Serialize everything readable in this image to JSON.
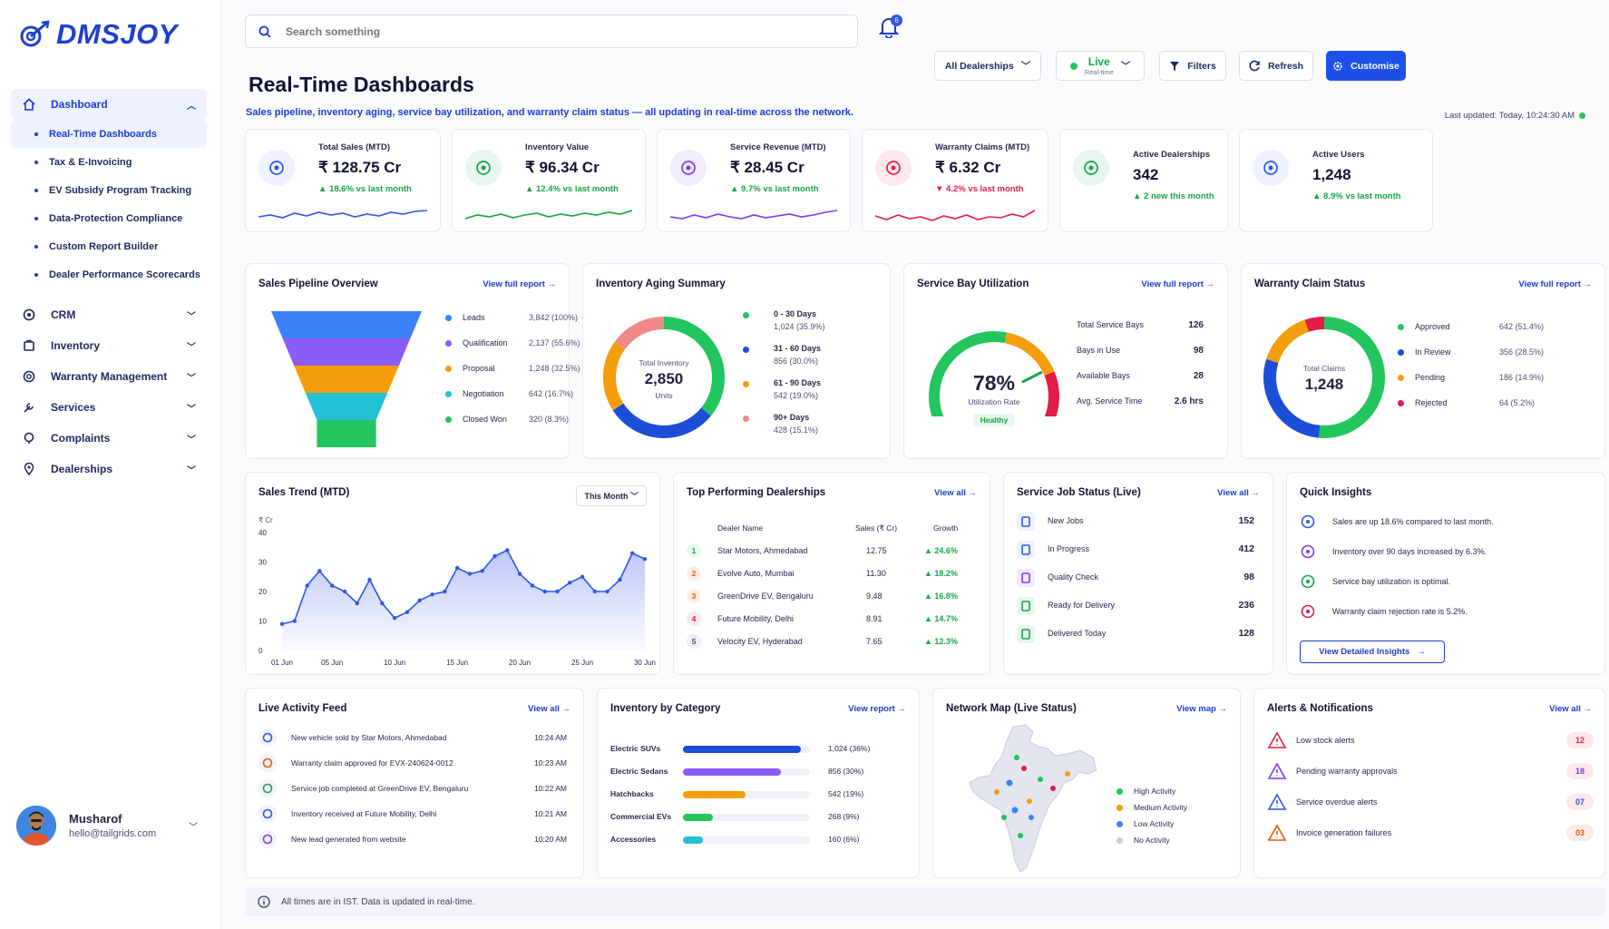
{
  "brand": {
    "name": "DMSJOY"
  },
  "sidebar": {
    "items": [
      {
        "label": "Dashboard",
        "icon": "home-icon",
        "expanded": true,
        "children": [
          "Real-Time Dashboards",
          "Tax & E-Invoicing",
          "EV Subsidy Program Tracking",
          "Data-Protection Compliance",
          "Custom Report Builder",
          "Dealer Performance Scorecards"
        ]
      },
      {
        "label": "CRM",
        "icon": "crm-icon"
      },
      {
        "label": "Inventory",
        "icon": "inventory-icon"
      },
      {
        "label": "Warranty Management",
        "icon": "warranty-icon"
      },
      {
        "label": "Services",
        "icon": "services-icon"
      },
      {
        "label": "Complaints",
        "icon": "complaints-icon"
      },
      {
        "label": "Dealerships",
        "icon": "dealerships-icon"
      }
    ],
    "user": {
      "name": "Musharof",
      "email": "hello@tailgrids.com"
    }
  },
  "header": {
    "search_placeholder": "Search something",
    "notifications_count": "6",
    "title": "Real-Time Dashboards",
    "subtitle": "Sales pipeline, inventory aging, service bay utilization, and warranty claim status — all updating in real-time across the network.",
    "last_updated": "Last updated: Today, 10:24:30 AM",
    "controls": {
      "dealership": "All Dealerships",
      "live": "Live",
      "live_sub": "Real-time",
      "filters": "Filters",
      "refresh": "Refresh",
      "customise": "Customise"
    }
  },
  "kpis": [
    {
      "label": "Total Sales (MTD)",
      "value": "₹ 128.75 Cr",
      "delta": "18.6% vs last month",
      "direction": "up",
      "color": "#2f55e8",
      "bg": "#eef2ff",
      "icon": "rupee-icon"
    },
    {
      "label": "Inventory Value",
      "value": "₹ 96.34 Cr",
      "delta": "12.4% vs last month",
      "direction": "up",
      "color": "#16a34a",
      "bg": "#e8f7ee",
      "icon": "box-icon"
    },
    {
      "label": "Service Revenue (MTD)",
      "value": "₹ 28.45 Cr",
      "delta": "9.7% vs last month",
      "direction": "up",
      "color": "#7c3aed",
      "bg": "#f1ebfe",
      "icon": "wrench-icon"
    },
    {
      "label": "Warranty Claims (MTD)",
      "value": "₹ 6.32 Cr",
      "delta": "4.2% vs last month",
      "direction": "down",
      "color": "#e11d48",
      "bg": "#fde8ea",
      "icon": "shield-icon"
    },
    {
      "label": "Active Dealerships",
      "value": "342",
      "delta": "2 new this month",
      "direction": "up",
      "color": "#16a34a",
      "bg": "#e8f7ee",
      "icon": "store-icon"
    },
    {
      "label": "Active Users",
      "value": "1,248",
      "delta": "8.9% vs last month",
      "direction": "up",
      "color": "#2f55e8",
      "bg": "#eef2ff",
      "icon": "user-icon"
    }
  ],
  "pipeline": {
    "title": "Sales Pipeline Overview",
    "link": "View full report",
    "stages": [
      {
        "label": "Leads",
        "value": "3,842 (100%)",
        "color": "#3b82f6"
      },
      {
        "label": "Qualification",
        "value": "2,137 (55.6%)",
        "color": "#8b5cf6"
      },
      {
        "label": "Proposal",
        "value": "1,248 (32.5%)",
        "color": "#f59e0b"
      },
      {
        "label": "Negotiation",
        "value": "642 (16.7%)",
        "color": "#22c1d6"
      },
      {
        "label": "Closed Won",
        "value": "320 (8.3%)",
        "color": "#22c55e"
      }
    ]
  },
  "aging": {
    "title": "Inventory Aging Summary",
    "center_label": "Total Inventory",
    "center_value": "2,850",
    "center_unit": "Units",
    "buckets": [
      {
        "label": "0 - 30 Days",
        "value": "1,024 (35.9%)",
        "pct": 35.9,
        "color": "#22c55e"
      },
      {
        "label": "31 - 60 Days",
        "value": "856 (30.0%)",
        "pct": 30.0,
        "color": "#1d4ed8"
      },
      {
        "label": "61 - 90 Days",
        "value": "542 (19.0%)",
        "pct": 19.0,
        "color": "#f59e0b"
      },
      {
        "label": "90+ Days",
        "value": "428 (15.1%)",
        "pct": 15.1,
        "color": "#f08a8a"
      }
    ]
  },
  "bay": {
    "title": "Service Bay Utilization",
    "link": "View full report",
    "pct": 78,
    "pct_label": "78%",
    "caption": "Utilization Rate",
    "status": "Healthy",
    "stats": [
      {
        "label": "Total Service Bays",
        "value": "126"
      },
      {
        "label": "Bays in Use",
        "value": "98"
      },
      {
        "label": "Available Bays",
        "value": "28"
      },
      {
        "label": "Avg. Service Time",
        "value": "2.6 hrs"
      }
    ]
  },
  "warranty": {
    "title": "Warranty Claim Status",
    "link": "View full report",
    "center_label": "Total Claims",
    "center_value": "1,248",
    "statuses": [
      {
        "label": "Approved",
        "value": "642 (51.4%)",
        "pct": 51.4,
        "color": "#22c55e"
      },
      {
        "label": "In Review",
        "value": "356 (28.5%)",
        "pct": 28.5,
        "color": "#1d4ed8"
      },
      {
        "label": "Pending",
        "value": "186 (14.9%)",
        "pct": 14.9,
        "color": "#f59e0b"
      },
      {
        "label": "Rejected",
        "value": "64 (5.2%)",
        "pct": 5.2,
        "color": "#e11d48"
      }
    ]
  },
  "trend": {
    "title": "Sales Trend (MTD)",
    "period": "This Month",
    "unit": "₹ Cr",
    "chart_data": {
      "type": "area",
      "x": [
        1,
        2,
        3,
        4,
        5,
        6,
        7,
        8,
        9,
        10,
        11,
        12,
        13,
        14,
        15,
        16,
        17,
        18,
        19,
        20,
        21,
        22,
        23,
        24,
        25,
        26,
        27,
        28,
        29,
        30
      ],
      "y": [
        9,
        10,
        22,
        27,
        22,
        20,
        16,
        24,
        16,
        11,
        13,
        17,
        19,
        20,
        28,
        26,
        27,
        32,
        34,
        26,
        22,
        20,
        20,
        23,
        25,
        20,
        20,
        24,
        33,
        31
      ],
      "xticks": [
        "01 Jun",
        "05 Jun",
        "10 Jun",
        "15 Jun",
        "20 Jun",
        "25 Jun",
        "30 Jun"
      ],
      "xtick_pos": [
        1,
        5,
        10,
        15,
        20,
        25,
        30
      ],
      "yticks": [
        "0",
        "10",
        "20",
        "30",
        "40"
      ],
      "ylim": [
        0,
        40
      ]
    }
  },
  "top_dealers": {
    "title": "Top Performing Dealerships",
    "link": "View all",
    "columns": [
      "Dealer Name",
      "Sales (₹ Cr)",
      "Growth"
    ],
    "rows": [
      {
        "rank": "1",
        "name": "Star Motors, Ahmedabad",
        "sales": "12.75",
        "growth": "24.6%",
        "color": "#16a34a",
        "bg": "#e8f7ee"
      },
      {
        "rank": "2",
        "name": "Evolve Auto, Mumbai",
        "sales": "11.30",
        "growth": "18.2%",
        "color": "#ea580c",
        "bg": "#fdeee4"
      },
      {
        "rank": "3",
        "name": "GreenDrive EV, Bengaluru",
        "sales": "9.48",
        "growth": "16.8%",
        "color": "#ea580c",
        "bg": "#fdeee4"
      },
      {
        "rank": "4",
        "name": "Future Mobility, Delhi",
        "sales": "8.91",
        "growth": "14.7%",
        "color": "#e11d48",
        "bg": "#fde8ea"
      },
      {
        "rank": "5",
        "name": "Velocity EV, Hyderabad",
        "sales": "7.65",
        "growth": "12.3%",
        "color": "#4a5070",
        "bg": "#eef0f5"
      }
    ]
  },
  "jobs": {
    "title": "Service Job Status (Live)",
    "link": "View all",
    "rows": [
      {
        "label": "New Jobs",
        "value": "152",
        "icon": "clipboard-icon",
        "color": "#2f55e8",
        "bg": "#eef2ff"
      },
      {
        "label": "In Progress",
        "value": "412",
        "icon": "wrench-icon",
        "color": "#2f55e8",
        "bg": "#eef2ff"
      },
      {
        "label": "Quality Check",
        "value": "98",
        "icon": "check-circle-icon",
        "color": "#7c3aed",
        "bg": "#f1ebfe"
      },
      {
        "label": "Ready for Delivery",
        "value": "236",
        "icon": "car-icon",
        "color": "#16a34a",
        "bg": "#e8f7ee"
      },
      {
        "label": "Delivered Today",
        "value": "128",
        "icon": "delivered-icon",
        "color": "#16a34a",
        "bg": "#e8f7ee"
      }
    ]
  },
  "insights": {
    "title": "Quick Insights",
    "button": "View Detailed Insights",
    "rows": [
      {
        "text": "Sales are up 18.6% compared to last month.",
        "color": "#2f55e8",
        "icon": "trend-icon"
      },
      {
        "text": "Inventory over 90 days increased by 6.3%.",
        "color": "#7c3aed",
        "icon": "shield-icon"
      },
      {
        "text": "Service bay utilization is optimal.",
        "color": "#16a34a",
        "icon": "check-icon"
      },
      {
        "text": "Warranty claim rejection rate is 5.2%.",
        "color": "#e11d48",
        "icon": "shield-icon"
      }
    ]
  },
  "activity": {
    "title": "Live Activity Feed",
    "link": "View all",
    "rows": [
      {
        "text": "New vehicle sold by Star Motors, Ahmedabad",
        "time": "10:24 AM",
        "color": "#2f55e8"
      },
      {
        "text": "Warranty claim approved for EVX-240624-0012",
        "time": "10:23 AM",
        "color": "#ea580c"
      },
      {
        "text": "Service job completed at GreenDrive EV, Bengaluru",
        "time": "10:22 AM",
        "color": "#16a34a"
      },
      {
        "text": "Inventory received at Future Mobility, Delhi",
        "time": "10:21 AM",
        "color": "#2f55e8"
      },
      {
        "text": "New lead generated from website",
        "time": "10:20 AM",
        "color": "#7c3aed"
      }
    ]
  },
  "category": {
    "title": "Inventory by Category",
    "link": "View report",
    "rows": [
      {
        "label": "Electric SUVs",
        "value": "1,024 (36%)",
        "pct": 36,
        "color": "#1d4ed8"
      },
      {
        "label": "Electric Sedans",
        "value": "856 (30%)",
        "pct": 30,
        "color": "#8b5cf6"
      },
      {
        "label": "Hatchbacks",
        "value": "542 (19%)",
        "pct": 19,
        "color": "#f59e0b"
      },
      {
        "label": "Commercial EVs",
        "value": "268 (9%)",
        "pct": 9,
        "color": "#22c55e"
      },
      {
        "label": "Accessories",
        "value": "160 (6%)",
        "pct": 6,
        "color": "#22c1d6"
      }
    ]
  },
  "map": {
    "title": "Network Map (Live Status)",
    "link": "View map",
    "legend": [
      {
        "label": "High Activity",
        "color": "#22c55e"
      },
      {
        "label": "Medium Activity",
        "color": "#f59e0b"
      },
      {
        "label": "Low Activity",
        "color": "#3b82f6"
      },
      {
        "label": "No Activity",
        "color": "#c4c8d6"
      }
    ]
  },
  "alerts": {
    "title": "Alerts & Notifications",
    "link": "View all",
    "rows": [
      {
        "label": "Low stock alerts",
        "count": "12",
        "color": "#e11d48"
      },
      {
        "label": "Pending warranty approvals",
        "count": "18",
        "color": "#7c3aed"
      },
      {
        "label": "Service overdue alerts",
        "count": "07",
        "color": "#2f55e8"
      },
      {
        "label": "Invoice generation failures",
        "count": "03",
        "color": "#ea580c"
      }
    ]
  },
  "footer": {
    "text": "All times are in IST. Data is updated in real-time."
  }
}
